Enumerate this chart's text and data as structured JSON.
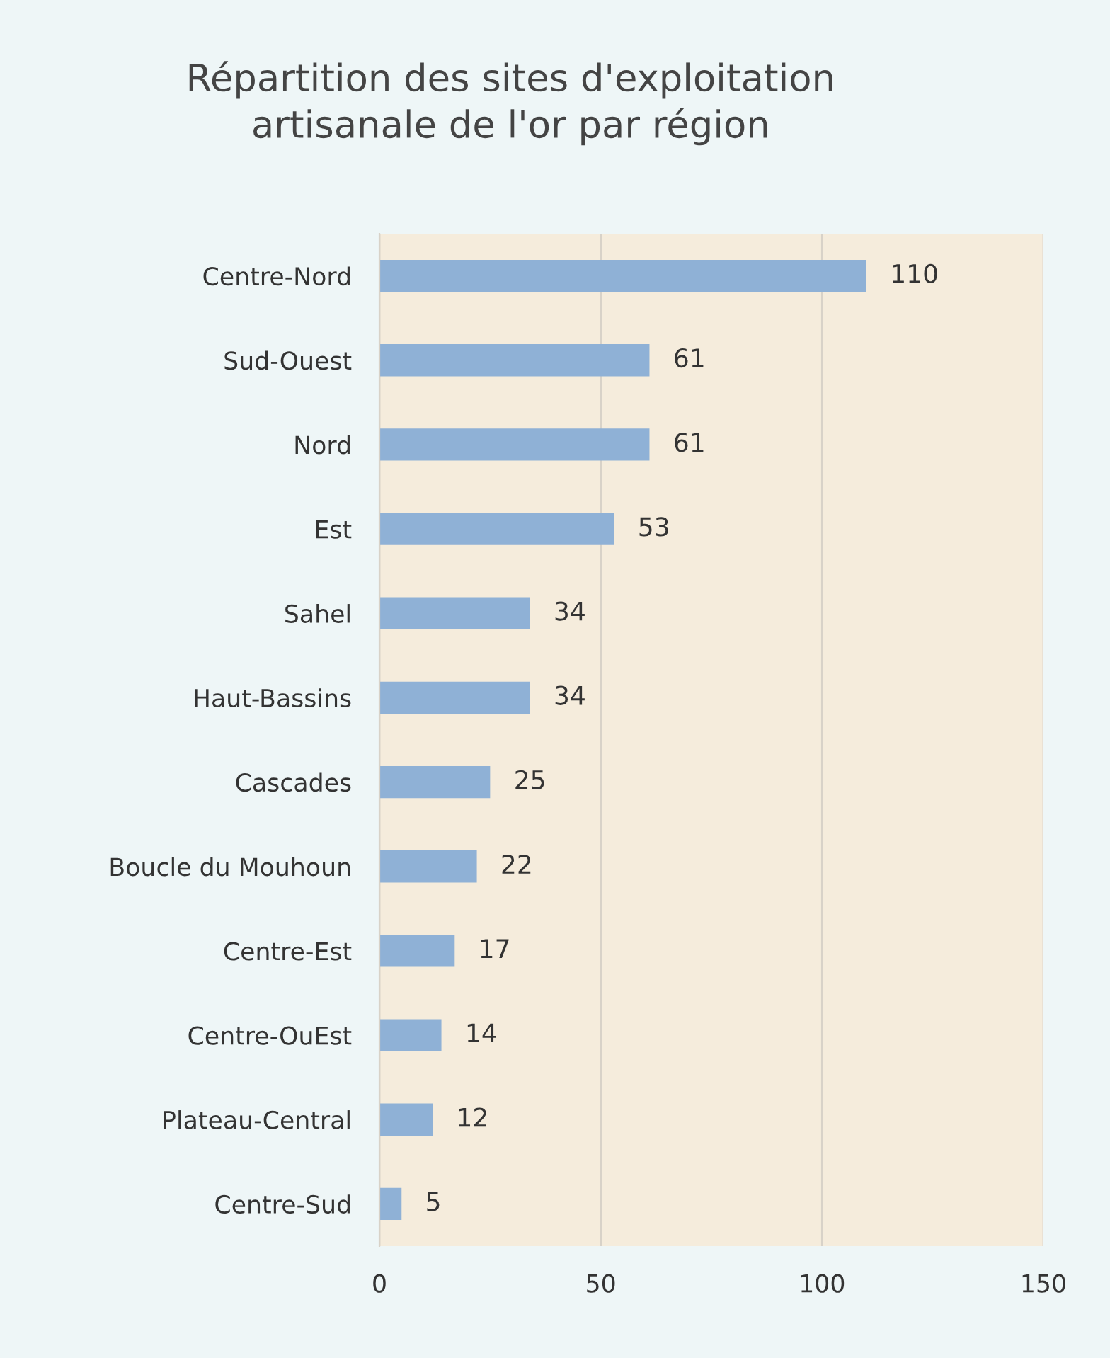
{
  "chart_data": {
    "type": "bar",
    "orientation": "horizontal",
    "title": "Répartition des sites d'exploitation\nartisanale de l'or par région",
    "categories": [
      "Centre-Nord",
      "Sud-Ouest",
      "Nord",
      "Est",
      "Sahel",
      "Haut-Bassins",
      "Cascades",
      "Boucle du Mouhoun",
      "Centre-Est",
      "Centre-OuEst",
      "Plateau-Central",
      "Centre-Sud"
    ],
    "values": [
      110,
      61,
      61,
      53,
      34,
      34,
      25,
      22,
      17,
      14,
      12,
      5
    ],
    "color": "#8fb1d6",
    "xlim": [
      0,
      150
    ],
    "xticks": [
      0,
      50,
      100,
      150
    ],
    "grid": "x",
    "data_labels": true,
    "legend": false
  }
}
